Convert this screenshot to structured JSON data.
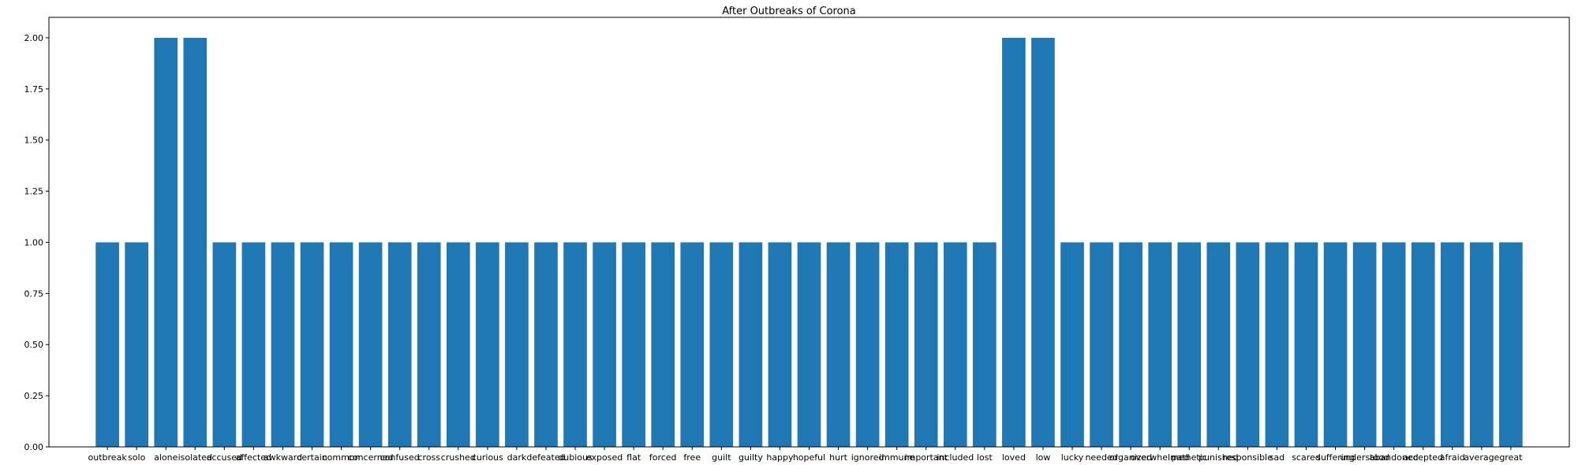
{
  "chart_data": {
    "type": "bar",
    "title": "After Outbreaks of Corona",
    "xlabel": "",
    "ylabel": "",
    "ylim": [
      0,
      2.1
    ],
    "yticks": [
      "0.00",
      "0.25",
      "0.50",
      "0.75",
      "1.00",
      "1.25",
      "1.50",
      "1.75",
      "2.00"
    ],
    "grid": false,
    "bar_color": "#1f77b4",
    "categories": [
      "outbreak",
      "solo",
      "alone",
      "isolated",
      "accused",
      "affected",
      "awkward",
      "certain",
      "common",
      "concerned",
      "confused",
      "cross",
      "crushed",
      "curious",
      "dark",
      "defeated",
      "dubious",
      "exposed",
      "flat",
      "forced",
      "free",
      "guilt",
      "guilty",
      "happy",
      "hopeful",
      "hurt",
      "ignored",
      "immune",
      "important",
      "included",
      "lost",
      "loved",
      "low",
      "lucky",
      "needed",
      "organized",
      "overwhelmed",
      "pathetic",
      "punished",
      "responsible",
      "sad",
      "scared",
      "suffering",
      "understood",
      "abandoned",
      "accepted",
      "afraid",
      "average",
      "great"
    ],
    "values": [
      1,
      1,
      2,
      2,
      1,
      1,
      1,
      1,
      1,
      1,
      1,
      1,
      1,
      1,
      1,
      1,
      1,
      1,
      1,
      1,
      1,
      1,
      1,
      1,
      1,
      1,
      1,
      1,
      1,
      1,
      1,
      2,
      2,
      1,
      1,
      1,
      1,
      1,
      1,
      1,
      1,
      1,
      1,
      1,
      1,
      1,
      1,
      1,
      1
    ]
  }
}
